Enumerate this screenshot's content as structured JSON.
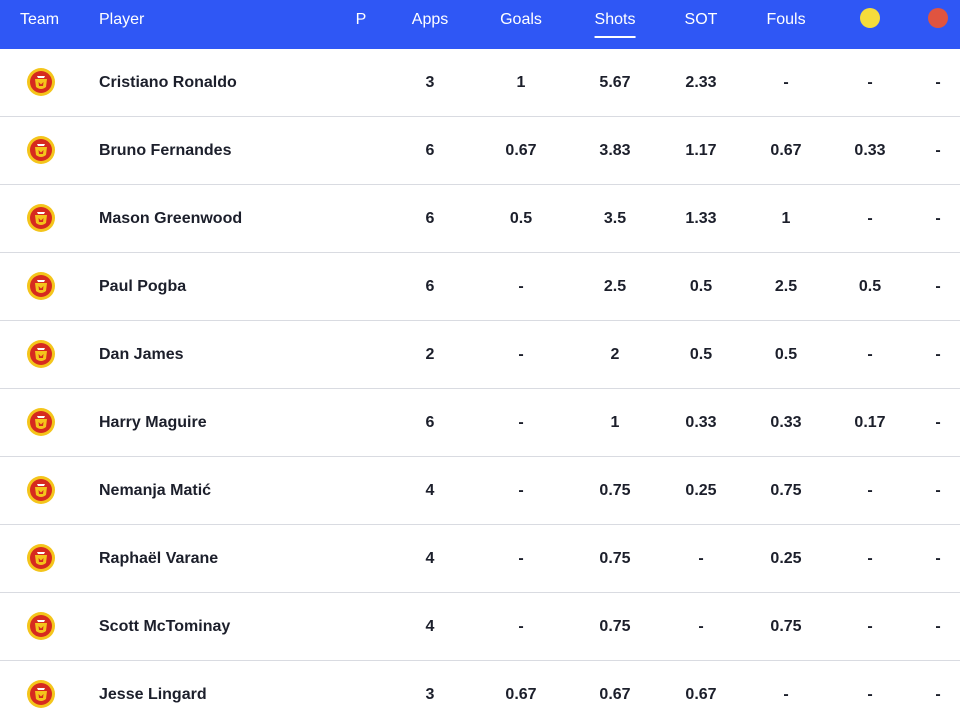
{
  "header": {
    "team": "Team",
    "player": "Player",
    "p": "P",
    "apps": "Apps",
    "goals": "Goals",
    "shots": "Shots",
    "sot": "SOT",
    "fouls": "Fouls",
    "yellow_icon": "yellow-card-icon",
    "red_icon": "red-card-icon",
    "active_column": "Shots"
  },
  "colors": {
    "header_bg": "#2f57f5",
    "yellow": "#f5dc3b",
    "red": "#e05440",
    "crest_red": "#d62a1f",
    "crest_gold": "#f4c51b"
  },
  "rows": [
    {
      "player": "Cristiano Ronaldo",
      "apps": "3",
      "goals": "1",
      "shots": "5.67",
      "sot": "2.33",
      "fouls": "-",
      "yellow": "-",
      "red": "-"
    },
    {
      "player": "Bruno Fernandes",
      "apps": "6",
      "goals": "0.67",
      "shots": "3.83",
      "sot": "1.17",
      "fouls": "0.67",
      "yellow": "0.33",
      "red": "-"
    },
    {
      "player": "Mason Greenwood",
      "apps": "6",
      "goals": "0.5",
      "shots": "3.5",
      "sot": "1.33",
      "fouls": "1",
      "yellow": "-",
      "red": "-"
    },
    {
      "player": "Paul Pogba",
      "apps": "6",
      "goals": "-",
      "shots": "2.5",
      "sot": "0.5",
      "fouls": "2.5",
      "yellow": "0.5",
      "red": "-"
    },
    {
      "player": "Dan James",
      "apps": "2",
      "goals": "-",
      "shots": "2",
      "sot": "0.5",
      "fouls": "0.5",
      "yellow": "-",
      "red": "-"
    },
    {
      "player": "Harry Maguire",
      "apps": "6",
      "goals": "-",
      "shots": "1",
      "sot": "0.33",
      "fouls": "0.33",
      "yellow": "0.17",
      "red": "-"
    },
    {
      "player": "Nemanja Matić",
      "apps": "4",
      "goals": "-",
      "shots": "0.75",
      "sot": "0.25",
      "fouls": "0.75",
      "yellow": "-",
      "red": "-"
    },
    {
      "player": "Raphaël Varane",
      "apps": "4",
      "goals": "-",
      "shots": "0.75",
      "sot": "-",
      "fouls": "0.25",
      "yellow": "-",
      "red": "-"
    },
    {
      "player": "Scott McTominay",
      "apps": "4",
      "goals": "-",
      "shots": "0.75",
      "sot": "-",
      "fouls": "0.75",
      "yellow": "-",
      "red": "-"
    },
    {
      "player": "Jesse Lingard",
      "apps": "3",
      "goals": "0.67",
      "shots": "0.67",
      "sot": "0.67",
      "fouls": "-",
      "yellow": "-",
      "red": "-"
    }
  ]
}
